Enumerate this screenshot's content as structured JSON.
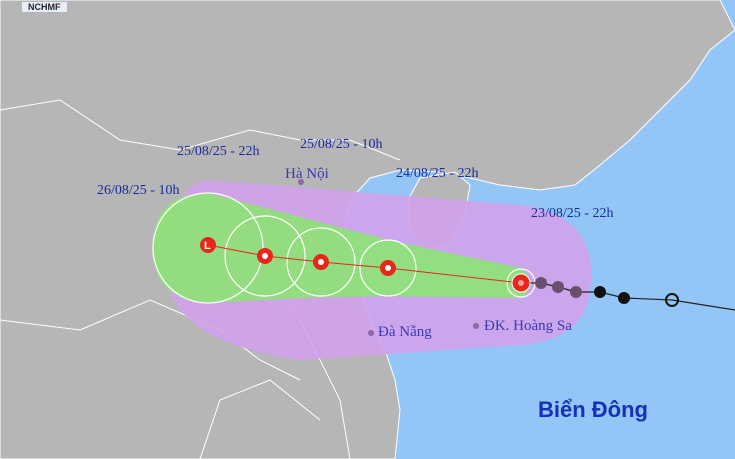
{
  "logo": "NCHMF",
  "colors": {
    "sea": "#93c6f6",
    "land": "#b6b6b6",
    "cone": "#d2a2ec",
    "wind_zone": "#8fe07a",
    "storm": "#e8261a",
    "past_track": "#6b4f6e"
  },
  "forecast_points": [
    {
      "label": "23/08/25 - 22h",
      "icon": "typhoon-icon"
    },
    {
      "label": "24/08/25 - 22h",
      "icon": "typhoon-icon"
    },
    {
      "label": "25/08/25 - 10h",
      "icon": "typhoon-icon"
    },
    {
      "label": "25/08/25 - 22h",
      "icon": "typhoon-icon"
    },
    {
      "label": "26/08/25 - 10h",
      "icon": "low-pressure-icon",
      "symbol": "L"
    }
  ],
  "places": {
    "hanoi": "Hà Nội",
    "danang": "Đà Nẵng",
    "hoangsa": "ĐK. Hoàng Sa",
    "sea": "Biển Đông"
  }
}
